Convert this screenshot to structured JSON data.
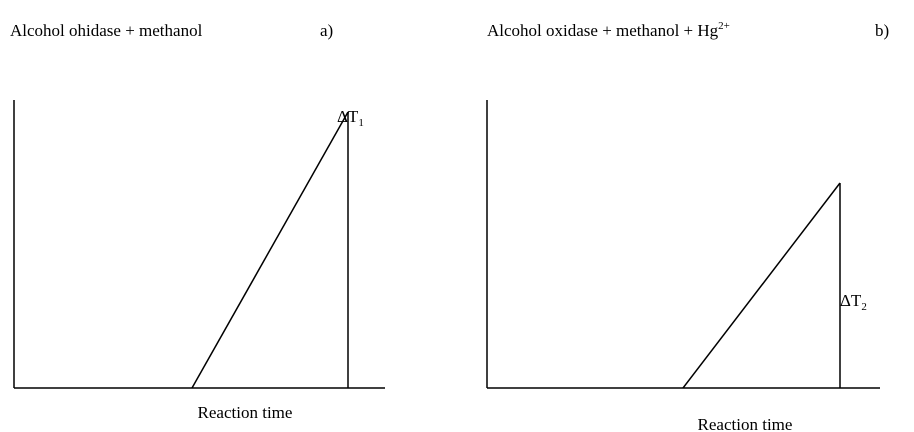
{
  "panels": [
    {
      "title": "Alcohol ohidase + methanol",
      "label": "a)",
      "delta": {
        "symbol": "ΔT",
        "subscript": "1"
      },
      "x_label": "Reaction time"
    },
    {
      "title": "Alcohol oxidase + methanol + Hg",
      "title_superscript": "2+",
      "label": "b)",
      "delta": {
        "symbol": "ΔT",
        "subscript": "2"
      },
      "x_label": "Reaction time"
    }
  ]
}
